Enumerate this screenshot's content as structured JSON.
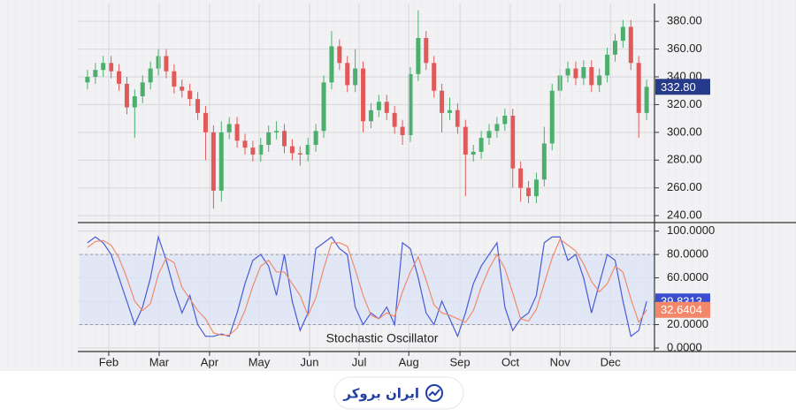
{
  "chart_data": [
    {
      "type": "candlestick",
      "x": [
        1,
        2,
        3,
        4,
        5,
        6,
        7,
        8,
        9,
        10,
        11,
        12,
        13,
        14,
        15,
        16,
        17,
        18,
        19,
        20,
        21,
        22,
        23,
        24,
        25,
        26,
        27,
        28,
        29,
        30,
        31,
        32,
        33,
        34,
        35,
        36,
        37,
        38,
        39,
        40,
        41,
        42,
        43,
        44,
        45,
        46,
        47,
        48,
        49,
        50,
        51,
        52,
        53,
        54,
        55,
        56,
        57,
        58,
        59,
        60,
        61,
        62,
        63,
        64,
        65,
        66,
        67,
        68,
        69,
        70,
        71,
        72
      ],
      "open": [
        336,
        340,
        345,
        350,
        344,
        335,
        318,
        326,
        336,
        346,
        355,
        344,
        333,
        330,
        324,
        314,
        300,
        258,
        300,
        306,
        294,
        289,
        284,
        291,
        300,
        301,
        290,
        285,
        284,
        291,
        301,
        336,
        362,
        350,
        334,
        346,
        308,
        316,
        322,
        314,
        304,
        298,
        342,
        368,
        350,
        330,
        314,
        316,
        304,
        284,
        286,
        296,
        301,
        306,
        312,
        274,
        260,
        254,
        266,
        292,
        330,
        341,
        346,
        339,
        347,
        334,
        341,
        356,
        366,
        376,
        350,
        314
      ],
      "high": [
        345,
        350,
        355,
        355,
        349,
        340,
        331,
        341,
        351,
        360,
        360,
        349,
        338,
        335,
        329,
        319,
        305,
        308,
        311,
        311,
        299,
        294,
        296,
        305,
        308,
        306,
        295,
        290,
        296,
        306,
        341,
        373,
        367,
        355,
        360,
        351,
        321,
        327,
        327,
        319,
        309,
        347,
        388,
        373,
        355,
        335,
        325,
        321,
        309,
        291,
        301,
        306,
        311,
        317,
        317,
        279,
        265,
        271,
        304,
        335,
        346,
        351,
        351,
        352,
        352,
        346,
        361,
        371,
        381,
        381,
        355,
        338
      ],
      "low": [
        331,
        335,
        340,
        339,
        330,
        313,
        296,
        321,
        331,
        341,
        339,
        328,
        325,
        319,
        309,
        280,
        245,
        250,
        295,
        289,
        284,
        279,
        279,
        286,
        295,
        285,
        280,
        276,
        279,
        286,
        296,
        331,
        345,
        329,
        329,
        300,
        303,
        311,
        309,
        299,
        291,
        293,
        337,
        345,
        325,
        300,
        309,
        299,
        254,
        279,
        281,
        291,
        296,
        301,
        260,
        250,
        249,
        249,
        261,
        287,
        325,
        336,
        334,
        334,
        329,
        329,
        336,
        351,
        361,
        345,
        296,
        309
      ],
      "close": [
        340,
        345,
        350,
        344,
        335,
        318,
        326,
        336,
        346,
        355,
        344,
        333,
        330,
        324,
        314,
        300,
        258,
        300,
        306,
        294,
        289,
        284,
        291,
        300,
        301,
        290,
        285,
        284,
        291,
        301,
        336,
        362,
        350,
        334,
        346,
        308,
        316,
        322,
        314,
        304,
        298,
        342,
        368,
        350,
        330,
        314,
        316,
        304,
        284,
        286,
        296,
        301,
        306,
        312,
        274,
        260,
        254,
        266,
        292,
        330,
        341,
        346,
        339,
        347,
        334,
        341,
        356,
        366,
        376,
        350,
        314,
        332.8
      ],
      "up_color": "#4caf6e",
      "down_color": "#e05a5a",
      "xlim": [
        0,
        73
      ],
      "ylim": [
        235,
        389
      ],
      "yticks": [
        {
          "value": 240,
          "label": "240.00"
        },
        {
          "value": 260,
          "label": "260.00"
        },
        {
          "value": 280,
          "label": "280.00"
        },
        {
          "value": 300,
          "label": "300.00"
        },
        {
          "value": 320,
          "label": "320.00"
        },
        {
          "value": 340,
          "label": "340.00"
        },
        {
          "value": 360,
          "label": "360.00"
        },
        {
          "value": 380,
          "label": "380.00"
        }
      ],
      "last_tag": {
        "value": 332.8,
        "label": "332.80",
        "color": "#263a8a"
      },
      "grid": true
    },
    {
      "type": "line",
      "annotation": "Stochastic Oscillator",
      "x": [
        1,
        2,
        3,
        4,
        5,
        6,
        7,
        8,
        9,
        10,
        11,
        12,
        13,
        14,
        15,
        16,
        17,
        18,
        19,
        20,
        21,
        22,
        23,
        24,
        25,
        26,
        27,
        28,
        29,
        30,
        31,
        32,
        33,
        34,
        35,
        36,
        37,
        38,
        39,
        40,
        41,
        42,
        43,
        44,
        45,
        46,
        47,
        48,
        49,
        50,
        51,
        52,
        53,
        54,
        55,
        56,
        57,
        58,
        59,
        60,
        61,
        62,
        63,
        64,
        65,
        66,
        67,
        68,
        69,
        70,
        71,
        72
      ],
      "series": [
        {
          "color": "#4a5bd6",
          "values": [
            90,
            95,
            90,
            80,
            60,
            40,
            20,
            35,
            60,
            95,
            75,
            50,
            30,
            45,
            20,
            10,
            10,
            12,
            10,
            30,
            55,
            75,
            80,
            70,
            45,
            80,
            40,
            15,
            30,
            85,
            90,
            95,
            85,
            80,
            35,
            20,
            30,
            25,
            35,
            20,
            90,
            85,
            60,
            30,
            20,
            40,
            25,
            10,
            30,
            55,
            70,
            80,
            90,
            35,
            15,
            25,
            30,
            45,
            90,
            95,
            95,
            75,
            80,
            60,
            30,
            55,
            80,
            75,
            40,
            10,
            15,
            39.8313
          ],
          "tag": {
            "value": 39.8313,
            "label": "39.8313",
            "color": "#3a4fd0"
          }
        },
        {
          "color": "#f08a6e",
          "values": [
            86,
            91,
            92,
            88,
            77,
            60,
            40,
            32,
            38,
            63,
            77,
            73,
            52,
            42,
            32,
            25,
            13,
            11,
            11,
            17,
            32,
            53,
            70,
            75,
            65,
            65,
            55,
            45,
            28,
            43,
            68,
            90,
            90,
            87,
            67,
            45,
            28,
            25,
            30,
            27,
            48,
            65,
            78,
            58,
            37,
            30,
            28,
            25,
            22,
            32,
            52,
            68,
            80,
            68,
            47,
            25,
            23,
            33,
            55,
            77,
            93,
            88,
            83,
            72,
            57,
            48,
            55,
            70,
            65,
            42,
            22,
            32.6404
          ],
          "tag": {
            "value": 32.6404,
            "label": "32.6404",
            "color": "#f4876a"
          }
        }
      ],
      "levels": [
        20,
        80
      ],
      "band_color": "#dbe3f6",
      "xlim": [
        0,
        73
      ],
      "ylim": [
        -3,
        105
      ],
      "xticks": [
        {
          "value": 3.7,
          "label": "Feb"
        },
        {
          "value": 10.1,
          "label": "Mar"
        },
        {
          "value": 16.5,
          "label": "Apr"
        },
        {
          "value": 22.8,
          "label": "May"
        },
        {
          "value": 29.2,
          "label": "Jun"
        },
        {
          "value": 35.5,
          "label": "Jul"
        },
        {
          "value": 41.8,
          "label": "Aug"
        },
        {
          "value": 48.3,
          "label": "Sep"
        },
        {
          "value": 54.7,
          "label": "Oct"
        },
        {
          "value": 61.0,
          "label": "Nov"
        },
        {
          "value": 67.4,
          "label": "Dec"
        }
      ],
      "yticks": [
        {
          "value": 0,
          "label": "0.0000"
        },
        {
          "value": 20,
          "label": "20.0000"
        },
        {
          "value": 40,
          "label": "40.0000"
        },
        {
          "value": 60,
          "label": "60.0000"
        },
        {
          "value": 80,
          "label": "80.0000"
        },
        {
          "value": 100,
          "label": "100.0000"
        }
      ],
      "grid": true
    }
  ],
  "watermark": "ایران بروکر"
}
